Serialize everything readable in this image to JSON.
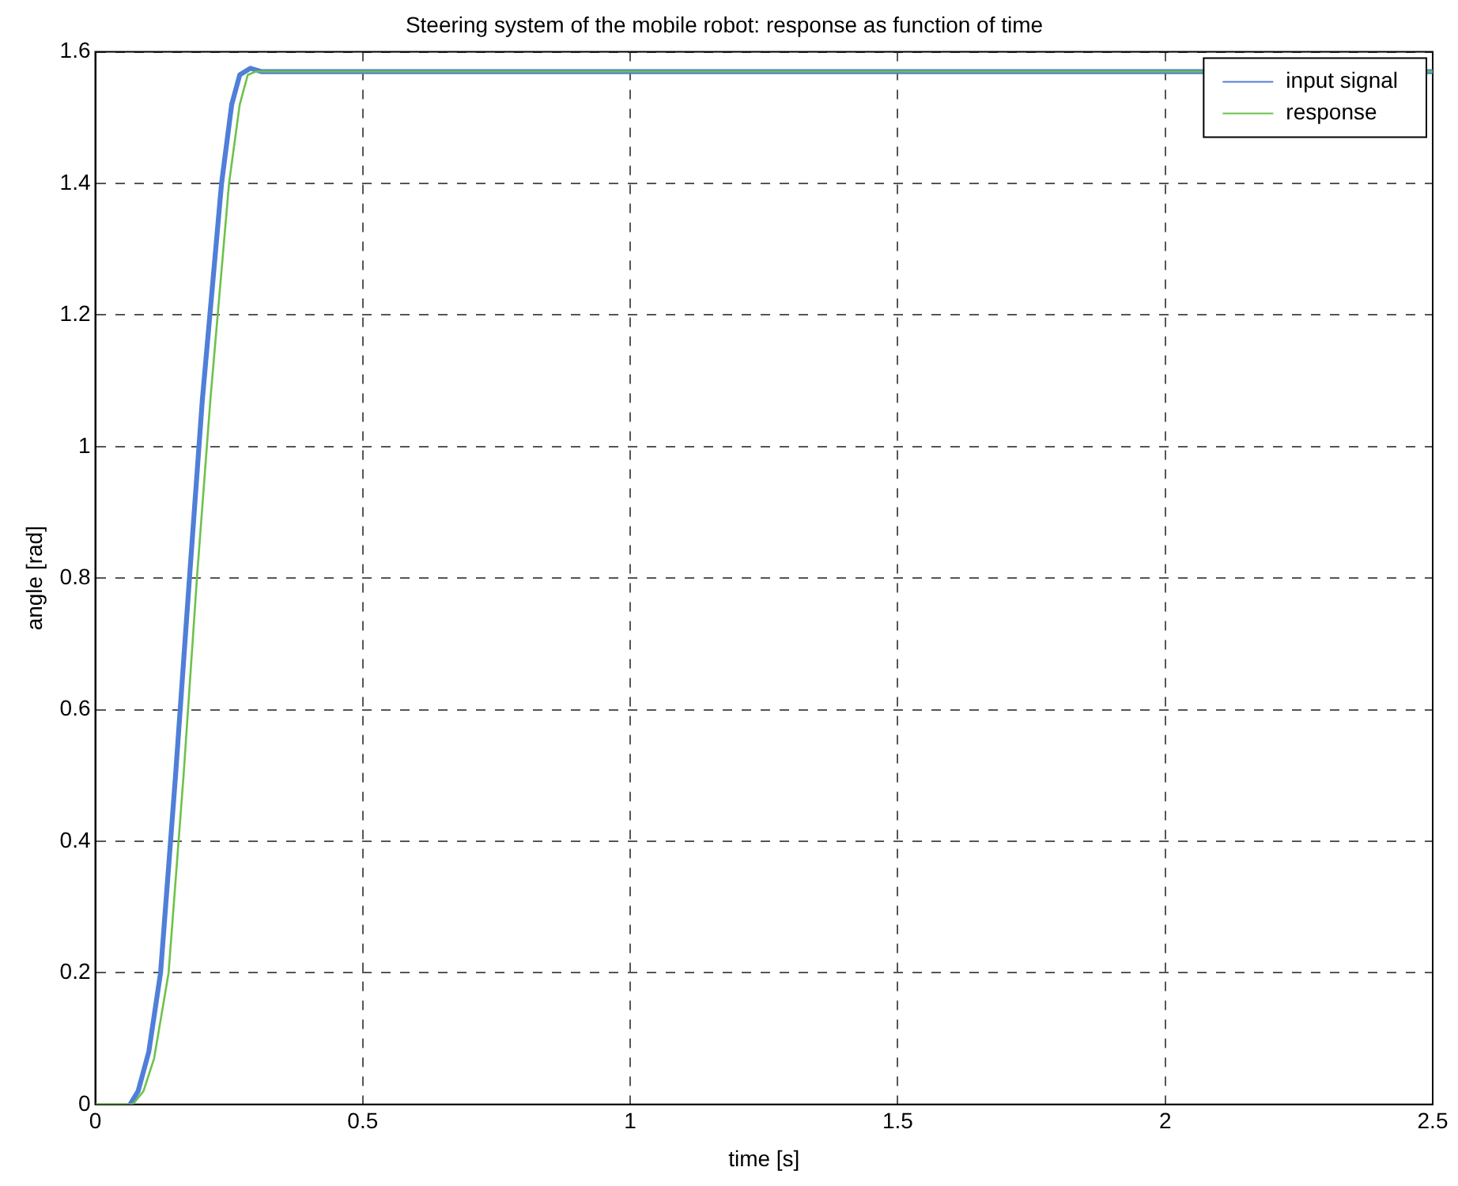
{
  "chart_data": {
    "type": "line",
    "title": "Steering system of the mobile robot: response as function of time",
    "xlabel": "time [s]",
    "ylabel": "angle [rad]",
    "xlim": [
      0,
      2.5
    ],
    "xticks": [
      0,
      0.5,
      1,
      1.5,
      2,
      2.5
    ],
    "ylim": [
      0,
      1.6
    ],
    "yticks": [
      0,
      0.2,
      0.4,
      0.6,
      0.8,
      1,
      1.2,
      1.4,
      1.6
    ],
    "grid": true,
    "legend": "top right",
    "marker": "none",
    "line_style": "solid",
    "series": [
      {
        "name": "input signal",
        "color": "#4f7fd8",
        "x": [
          0.065,
          0.08,
          0.1,
          0.122,
          0.15,
          0.176,
          0.2,
          0.236,
          0.255,
          0.27,
          0.29,
          0.31,
          2.5
        ],
        "values": [
          0,
          0.02,
          0.08,
          0.2,
          0.5,
          0.8,
          1.07,
          1.4,
          1.52,
          1.565,
          1.575,
          1.57,
          1.57
        ]
      },
      {
        "name": "response",
        "color": "#6cc24a",
        "x": [
          0,
          0.07,
          0.09,
          0.11,
          0.137,
          0.165,
          0.19,
          0.215,
          0.25,
          0.27,
          0.285,
          0.3,
          2.5
        ],
        "values": [
          0,
          0,
          0.02,
          0.07,
          0.2,
          0.5,
          0.8,
          1.07,
          1.4,
          1.52,
          1.565,
          1.57,
          1.57
        ]
      }
    ]
  }
}
